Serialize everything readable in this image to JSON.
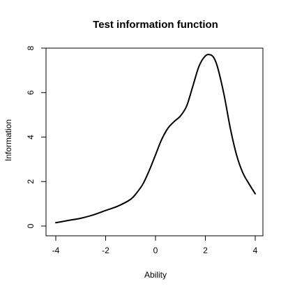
{
  "chart_data": {
    "type": "line",
    "title": "Test information function",
    "xlabel": "Ability",
    "ylabel": "Information",
    "xlim": [
      -4,
      4
    ],
    "ylim": [
      0,
      8
    ],
    "xticks": [
      -4,
      -2,
      0,
      2,
      4
    ],
    "yticks": [
      0,
      2,
      4,
      6,
      8
    ],
    "x_tick_labels": [
      "-4",
      "-2",
      "0",
      "2",
      "4"
    ],
    "y_tick_labels": [
      "0",
      "2",
      "4",
      "6",
      "8"
    ],
    "grid": false,
    "series": [
      {
        "color": "#000000",
        "x": [
          -4.0,
          -3.5,
          -3.0,
          -2.5,
          -2.0,
          -1.5,
          -1.0,
          -0.75,
          -0.5,
          -0.25,
          0.0,
          0.25,
          0.5,
          0.75,
          1.0,
          1.25,
          1.5,
          1.75,
          2.0,
          2.2,
          2.35,
          2.5,
          2.75,
          3.0,
          3.25,
          3.5,
          3.75,
          4.0
        ],
        "y": [
          0.15,
          0.25,
          0.35,
          0.5,
          0.7,
          0.9,
          1.2,
          1.5,
          1.9,
          2.5,
          3.2,
          3.9,
          4.4,
          4.7,
          4.95,
          5.4,
          6.3,
          7.2,
          7.65,
          7.7,
          7.55,
          7.1,
          5.9,
          4.4,
          3.2,
          2.4,
          1.9,
          1.45
        ]
      }
    ]
  }
}
